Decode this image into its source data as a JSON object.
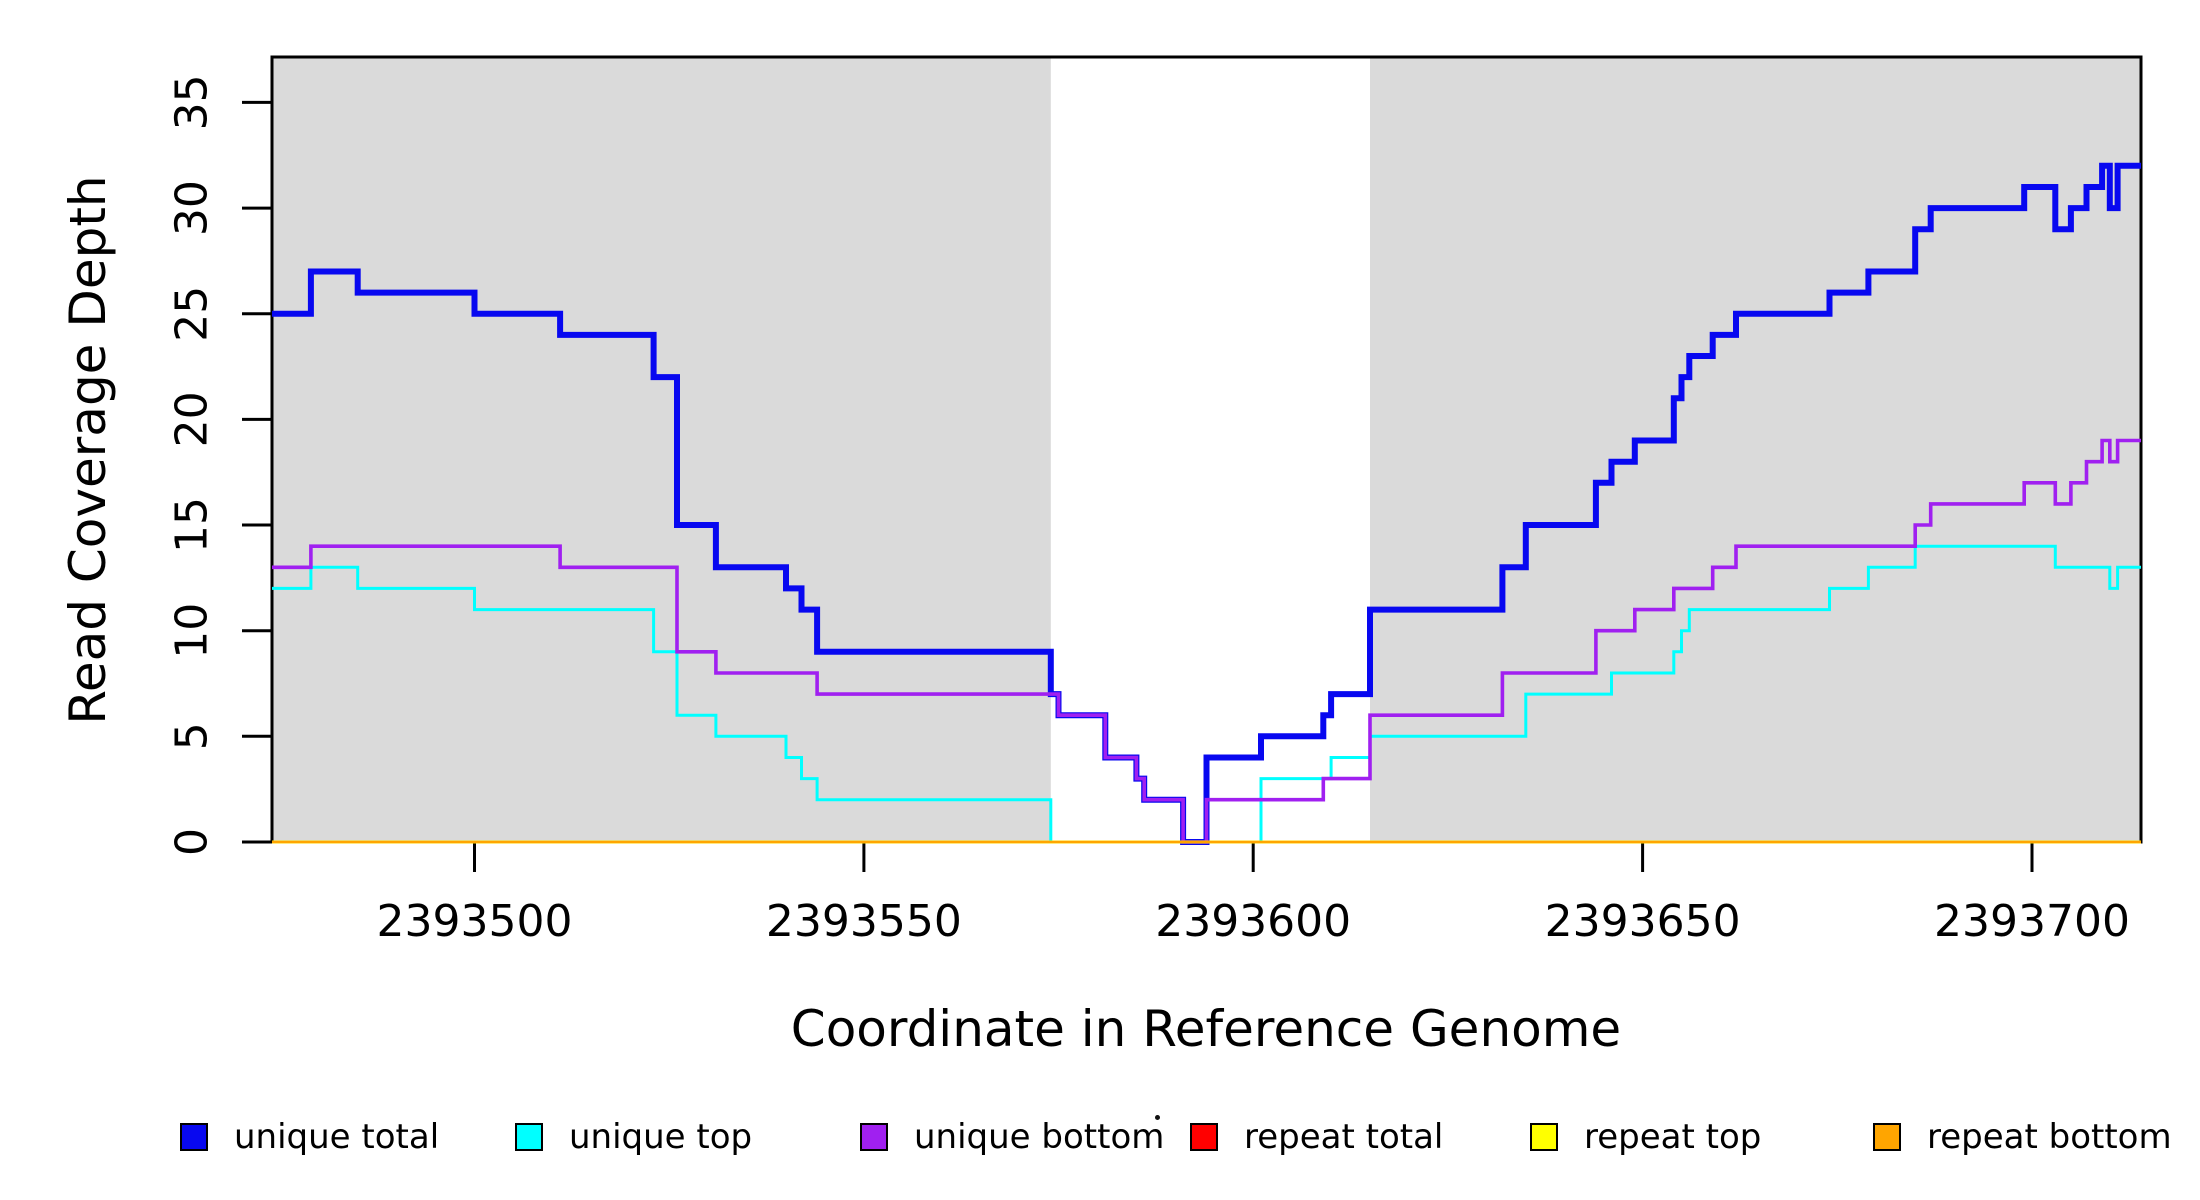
{
  "chart_data": {
    "type": "line",
    "line_style": "step",
    "title": "",
    "xlabel": "Coordinate in Reference Genome",
    "ylabel": "Read Coverage Depth",
    "xlim": [
      2393474,
      2393714
    ],
    "ylim": [
      0,
      37.15
    ],
    "x_ticks": [
      2393500,
      2393550,
      2393600,
      2393650,
      2393700
    ],
    "y_ticks": [
      0,
      5,
      10,
      15,
      20,
      25,
      30,
      35
    ],
    "grid": false,
    "legend_position": "bottom",
    "shading_color": "#DADADA",
    "shaded_regions": [
      [
        2393474,
        2393574
      ],
      [
        2393615,
        2393714
      ]
    ],
    "series": [
      {
        "name": "unique total",
        "color": "#0808F0",
        "line_width": 6,
        "steps": [
          [
            2393474,
            25
          ],
          [
            2393479,
            27
          ],
          [
            2393485,
            26
          ],
          [
            2393500,
            25
          ],
          [
            2393511,
            24
          ],
          [
            2393523,
            22
          ],
          [
            2393526,
            15
          ],
          [
            2393531,
            13
          ],
          [
            2393540,
            12
          ],
          [
            2393542,
            11
          ],
          [
            2393544,
            9
          ],
          [
            2393574,
            7
          ],
          [
            2393575,
            6
          ],
          [
            2393581,
            4
          ],
          [
            2393585,
            3
          ],
          [
            2393586,
            2
          ],
          [
            2393591,
            0
          ],
          [
            2393594,
            4
          ],
          [
            2393601,
            5
          ],
          [
            2393609,
            6
          ],
          [
            2393610,
            7
          ],
          [
            2393615,
            11
          ],
          [
            2393632,
            13
          ],
          [
            2393635,
            15
          ],
          [
            2393644,
            17
          ],
          [
            2393646,
            18
          ],
          [
            2393649,
            19
          ],
          [
            2393654,
            21
          ],
          [
            2393655,
            22
          ],
          [
            2393656,
            23
          ],
          [
            2393659,
            24
          ],
          [
            2393662,
            25
          ],
          [
            2393674,
            26
          ],
          [
            2393679,
            27
          ],
          [
            2393685,
            29
          ],
          [
            2393687,
            30
          ],
          [
            2393699,
            31
          ],
          [
            2393703,
            29
          ],
          [
            2393705,
            30
          ],
          [
            2393707,
            31
          ],
          [
            2393709,
            32
          ],
          [
            2393710,
            30
          ],
          [
            2393711,
            32
          ]
        ]
      },
      {
        "name": "unique top",
        "color": "#00FFFF",
        "line_width": 3,
        "steps": [
          [
            2393474,
            12
          ],
          [
            2393479,
            13
          ],
          [
            2393485,
            12
          ],
          [
            2393500,
            11
          ],
          [
            2393523,
            9
          ],
          [
            2393526,
            6
          ],
          [
            2393531,
            5
          ],
          [
            2393540,
            4
          ],
          [
            2393542,
            3
          ],
          [
            2393544,
            2
          ],
          [
            2393574,
            0
          ],
          [
            2393601,
            3
          ],
          [
            2393610,
            4
          ],
          [
            2393615,
            5
          ],
          [
            2393635,
            7
          ],
          [
            2393646,
            8
          ],
          [
            2393654,
            9
          ],
          [
            2393655,
            10
          ],
          [
            2393656,
            11
          ],
          [
            2393674,
            12
          ],
          [
            2393679,
            13
          ],
          [
            2393685,
            14
          ],
          [
            2393703,
            13
          ],
          [
            2393710,
            12
          ],
          [
            2393711,
            13
          ]
        ]
      },
      {
        "name": "unique bottom",
        "color": "#A020F0",
        "line_width": 3.6,
        "steps": [
          [
            2393474,
            13
          ],
          [
            2393479,
            14
          ],
          [
            2393511,
            13
          ],
          [
            2393526,
            9
          ],
          [
            2393531,
            8
          ],
          [
            2393544,
            7
          ],
          [
            2393575,
            6
          ],
          [
            2393581,
            4
          ],
          [
            2393585,
            3
          ],
          [
            2393586,
            2
          ],
          [
            2393591,
            0
          ],
          [
            2393594,
            2
          ],
          [
            2393609,
            3
          ],
          [
            2393615,
            6
          ],
          [
            2393632,
            8
          ],
          [
            2393644,
            10
          ],
          [
            2393649,
            11
          ],
          [
            2393654,
            12
          ],
          [
            2393659,
            13
          ],
          [
            2393662,
            14
          ],
          [
            2393685,
            15
          ],
          [
            2393687,
            16
          ],
          [
            2393699,
            17
          ],
          [
            2393703,
            16
          ],
          [
            2393705,
            17
          ],
          [
            2393707,
            18
          ],
          [
            2393709,
            19
          ],
          [
            2393710,
            18
          ],
          [
            2393711,
            19
          ]
        ]
      },
      {
        "name": "repeat total",
        "color": "#FF0000",
        "line_width": 3,
        "steps": [
          [
            2393474,
            0
          ]
        ]
      },
      {
        "name": "repeat top",
        "color": "#FFFF00",
        "line_width": 3,
        "steps": [
          [
            2393474,
            0
          ]
        ]
      },
      {
        "name": "repeat bottom",
        "color": "#FFA500",
        "line_width": 2.6,
        "steps": [
          [
            2393474,
            0
          ]
        ]
      }
    ]
  }
}
